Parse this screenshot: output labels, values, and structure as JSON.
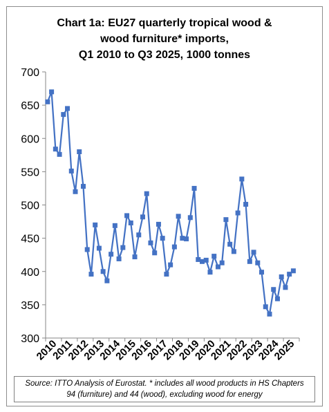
{
  "chart_data": {
    "type": "line",
    "title_lines": [
      "Chart 1a: EU27 quarterly tropical wood &",
      "wood furniture* imports,",
      "Q1 2010 to Q3 2025, 1000 tonnes"
    ],
    "ylim": [
      300,
      700
    ],
    "y_ticks": [
      300,
      350,
      400,
      450,
      500,
      550,
      600,
      650,
      700
    ],
    "x_tick_labels": [
      "2010",
      "2011",
      "2012",
      "2013",
      "2014",
      "2015",
      "2016",
      "2017",
      "2018",
      "2019",
      "2020",
      "2021",
      "2022",
      "2023",
      "2024",
      "2025"
    ],
    "grid": false,
    "legend": "none",
    "series": [
      {
        "color": "#4472c4",
        "marker": "square",
        "values": [
          655,
          670,
          584,
          576,
          636,
          645,
          551,
          520,
          580,
          528,
          433,
          396,
          470,
          435,
          400,
          386,
          426,
          469,
          419,
          436,
          484,
          473,
          422,
          455,
          482,
          517,
          443,
          428,
          471,
          450,
          396,
          410,
          437,
          483,
          450,
          449,
          481,
          525,
          418,
          415,
          417,
          399,
          423,
          407,
          413,
          478,
          441,
          430,
          488,
          539,
          501,
          415,
          429,
          413,
          399,
          347,
          336,
          373,
          359,
          392,
          376,
          396,
          401
        ]
      }
    ]
  },
  "footer": {
    "source_line1": "Source: ITTO Analysis of Eurostat. * includes all wood products in HS Chapters",
    "source_line2": "94 (furniture) and 44 (wood), excluding wood for energy"
  }
}
